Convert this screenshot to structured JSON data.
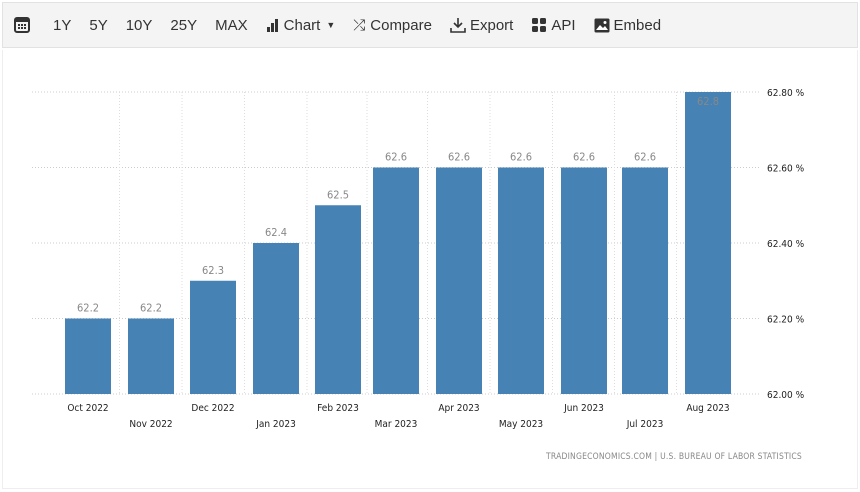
{
  "toolbar": {
    "ranges": [
      "1Y",
      "5Y",
      "10Y",
      "25Y",
      "MAX"
    ],
    "chart": "Chart",
    "compare": "Compare",
    "export": "Export",
    "api": "API",
    "embed": "Embed"
  },
  "chart_data": {
    "type": "bar",
    "categories": [
      "Oct 2022",
      "Nov 2022",
      "Dec 2022",
      "Jan 2023",
      "Feb 2023",
      "Mar 2023",
      "Apr 2023",
      "May 2023",
      "Jun 2023",
      "Jul 2023",
      "Aug 2023"
    ],
    "values": [
      62.2,
      62.2,
      62.3,
      62.4,
      62.5,
      62.6,
      62.6,
      62.6,
      62.6,
      62.6,
      62.8
    ],
    "ylim": [
      62.0,
      62.8
    ],
    "yticks": [
      "62.00 %",
      "62.20 %",
      "62.40 %",
      "62.60 %",
      "62.80 %"
    ],
    "grid": true,
    "bar_color": "#4682b4",
    "source": "TRADINGECONOMICS.COM | U.S. BUREAU OF LABOR STATISTICS"
  }
}
